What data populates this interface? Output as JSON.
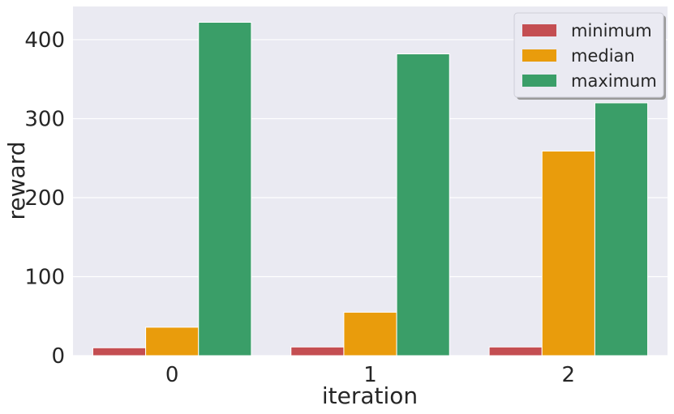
{
  "chart_data": {
    "type": "bar",
    "categories": [
      "0",
      "1",
      "2"
    ],
    "series": [
      {
        "name": "minimum",
        "color": "#C44E52",
        "values": [
          10,
          11,
          11
        ]
      },
      {
        "name": "median",
        "color": "#E99C0C",
        "values": [
          36,
          55,
          259
        ]
      },
      {
        "name": "maximum",
        "color": "#3A9E68",
        "values": [
          422,
          382,
          320
        ]
      }
    ],
    "title": "",
    "xlabel": "iteration",
    "ylabel": "reward",
    "ylim": [
      0,
      442
    ],
    "yticks": [
      0,
      100,
      200,
      300,
      400
    ],
    "grid": true,
    "legend_position": "top-right",
    "colors": {
      "background": "#EAEAF2",
      "grid": "#FFFFFF",
      "text": "#262626"
    }
  }
}
